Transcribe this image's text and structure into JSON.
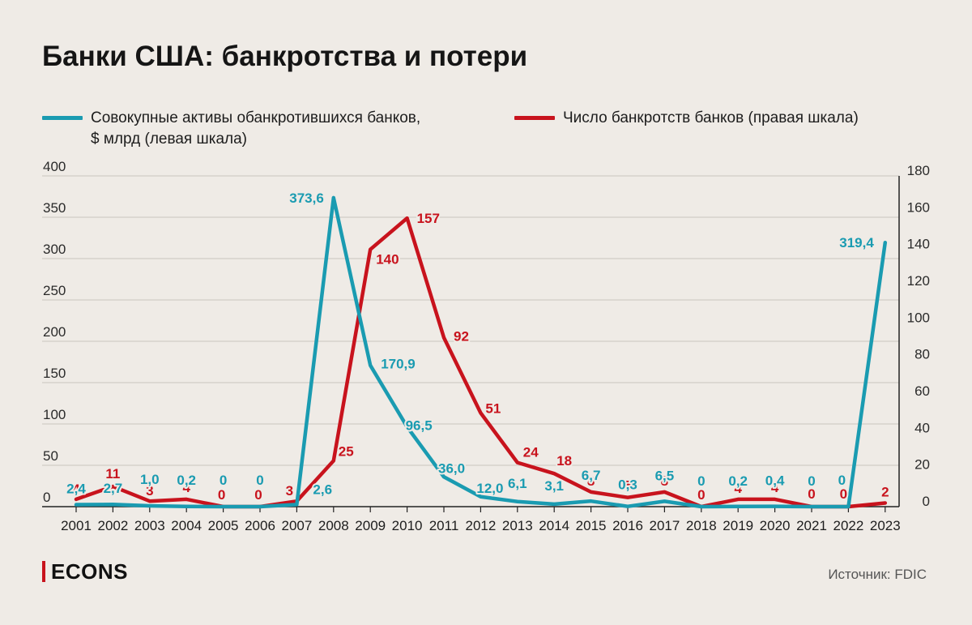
{
  "header": {
    "title": "Банки США: банкротства и потери"
  },
  "footer": {
    "brand": "ECONS",
    "source": "Источник: FDIC"
  },
  "chart_data": {
    "type": "line",
    "title": "Банки США: банкротства и потери",
    "categories": [
      "2001",
      "2002",
      "2003",
      "2004",
      "2005",
      "2006",
      "2007",
      "2008",
      "2009",
      "2010",
      "2011",
      "2012",
      "2013",
      "2014",
      "2015",
      "2016",
      "2017",
      "2018",
      "2019",
      "2020",
      "2021",
      "2022",
      "2023"
    ],
    "left_axis": {
      "min": 0,
      "max": 400,
      "ticks": [
        "0",
        "50",
        "100",
        "150",
        "200",
        "250",
        "300",
        "350",
        "400"
      ]
    },
    "right_axis": {
      "min": 0,
      "max": 180,
      "ticks": [
        "0",
        "20",
        "40",
        "60",
        "80",
        "100",
        "120",
        "140",
        "160",
        "180"
      ]
    },
    "grid": true,
    "series": [
      {
        "name": "Совокупные активы обанкротившихся банков,\n$ млрд (левая шкала)",
        "axis": "left",
        "color": "#1a9bb1",
        "values": [
          2.4,
          2.7,
          1.0,
          0.2,
          0,
          0,
          2.6,
          373.6,
          170.9,
          96.5,
          36.0,
          12.0,
          6.1,
          3.1,
          6.7,
          0.3,
          6.5,
          0,
          0.2,
          0.4,
          0,
          0,
          319.4
        ],
        "labels": [
          "2,4",
          "2,7",
          "1,0",
          "0,2",
          "0",
          "0",
          "2,6",
          "373,6",
          "170,9",
          "96,5",
          "36,0",
          "12,0",
          "6,1",
          "3,1",
          "6,7",
          "0,3",
          "6,5",
          "0",
          "0,2",
          "0,4",
          "0",
          "0",
          "319,4"
        ]
      },
      {
        "name": "Число банкротств банков (правая шкала)",
        "axis": "right",
        "color": "#c8131d",
        "values": [
          4,
          11,
          3,
          4,
          0,
          0,
          3,
          25,
          140,
          157,
          92,
          51,
          24,
          18,
          8,
          5,
          8,
          0,
          4,
          4,
          0,
          0,
          2
        ],
        "labels": [
          "4",
          "11",
          "3",
          "4",
          "0",
          "0",
          "3",
          "25",
          "140",
          "157",
          "92",
          "51",
          "24",
          "18",
          "8",
          "5",
          "8",
          "0",
          "4",
          "4",
          "0",
          "0",
          "2"
        ]
      }
    ]
  }
}
